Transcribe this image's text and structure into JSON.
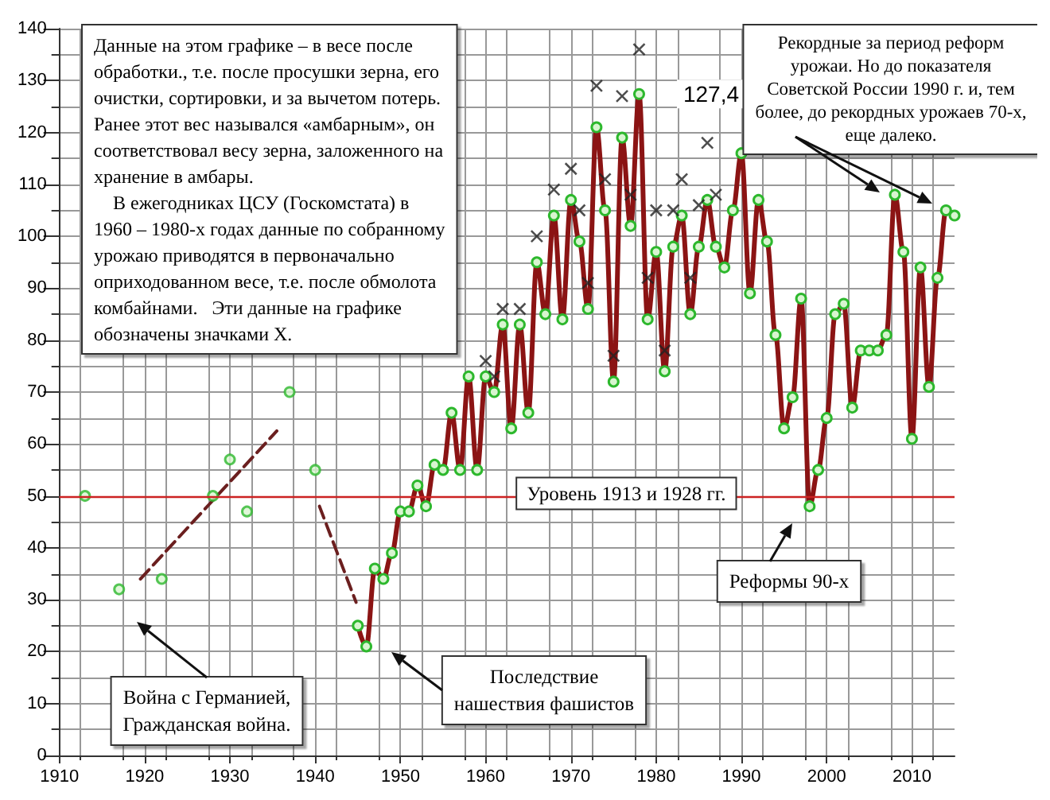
{
  "chart_data": {
    "type": "line",
    "xlim": [
      1910,
      2015
    ],
    "xticks": [
      1910,
      1920,
      1930,
      1940,
      1950,
      1960,
      1970,
      1980,
      1990,
      2000,
      2010
    ],
    "ylim": [
      0,
      140
    ],
    "yticks": [
      0,
      10,
      20,
      30,
      40,
      50,
      60,
      70,
      80,
      90,
      100,
      110,
      120,
      130,
      140
    ],
    "grid": true,
    "marker": "circle",
    "line_style": "solid",
    "series": [
      {
        "type": "scatter",
        "color": "#2db82d",
        "x": [
          1913,
          1917,
          1922,
          1928,
          1930,
          1932,
          1937,
          1940
        ],
        "values": [
          50,
          32,
          34,
          50,
          57,
          47,
          70,
          55
        ]
      },
      {
        "color": "#6b1f1f",
        "line_style": "dashed",
        "marker": "none",
        "x": [
          1919.5,
          1935.5
        ],
        "values": [
          34,
          62.5
        ]
      },
      {
        "color": "#6b1f1f",
        "line_style": "dashed",
        "marker": "none",
        "x": [
          1940.5,
          1944.8
        ],
        "values": [
          48,
          29.5
        ]
      },
      {
        "color": "#8b1414",
        "x": [
          1945,
          1946,
          1947,
          1948,
          1949,
          1950,
          1951,
          1952,
          1953,
          1954,
          1955,
          1956,
          1957,
          1958,
          1959,
          1960,
          1961,
          1962,
          1963,
          1964,
          1965,
          1966,
          1967,
          1968,
          1969,
          1970,
          1971,
          1972,
          1973,
          1974,
          1975,
          1976,
          1977,
          1978,
          1979,
          1980,
          1981,
          1982,
          1983,
          1984,
          1985,
          1986,
          1987,
          1988,
          1989,
          1990,
          1991,
          1992,
          1993,
          1994,
          1995,
          1996,
          1997,
          1998,
          1999,
          2000,
          2001,
          2002,
          2003,
          2004,
          2005,
          2006,
          2007,
          2008,
          2009,
          2010,
          2011,
          2012,
          2013,
          2014,
          2015
        ],
        "values": [
          25,
          21,
          36,
          34,
          39,
          47,
          47,
          52,
          48,
          56,
          55,
          66,
          55,
          73,
          55,
          73,
          70,
          83,
          63,
          83,
          66,
          95,
          85,
          104,
          84,
          107,
          99,
          86,
          121,
          105,
          72,
          119,
          102,
          127.4,
          84,
          97,
          74,
          98,
          104,
          85,
          98,
          107,
          98,
          94,
          105,
          116,
          89,
          107,
          99,
          81,
          63,
          69,
          88,
          48,
          55,
          65,
          85,
          87,
          67,
          78,
          78,
          78,
          81,
          108,
          97,
          61,
          94,
          71,
          92,
          105,
          104
        ],
        "value_labels": [
          null,
          null,
          null,
          null,
          null,
          null,
          null,
          null,
          null,
          null,
          null,
          null,
          null,
          null,
          null,
          null,
          null,
          null,
          null,
          null,
          null,
          null,
          null,
          null,
          null,
          null,
          null,
          null,
          null,
          null,
          null,
          null,
          null,
          "127,4",
          null,
          null,
          null,
          null,
          null,
          null,
          null,
          null,
          null,
          null,
          null,
          null,
          null,
          null,
          null,
          null,
          null,
          null,
          null,
          null,
          null,
          null,
          null,
          null,
          null,
          null,
          null,
          null,
          null,
          null,
          null,
          null,
          null,
          null,
          null,
          null,
          null
        ]
      },
      {
        "type": "scatter",
        "color": "#222222",
        "marker": "cross",
        "x": [
          1960,
          1961,
          1962,
          1964,
          1966,
          1968,
          1970,
          1971,
          1972,
          1973,
          1974,
          1975,
          1976,
          1977,
          1978,
          1979,
          1980,
          1981,
          1982,
          1983,
          1984,
          1985,
          1986,
          1987
        ],
        "values": [
          76,
          73,
          86,
          86,
          100,
          109,
          113,
          105,
          91,
          129,
          111,
          77,
          127,
          108,
          136,
          92,
          105,
          78,
          105,
          111,
          92,
          106,
          118,
          108
        ]
      }
    ],
    "ref_lines": [
      {
        "axis": "y",
        "value": 50,
        "label": "Уровень 1913 и 1928 гг.",
        "color": "#cc2222"
      }
    ],
    "annotations": [
      "Данные на этом графике – в весе после\nобработки., т.е. после просушки зерна, его\nочистки, сортировки, и за вычетом потерь.\nРанее этот вес назывался «амбарным», он\nсоответствовал весу зерна, заложенного на\nхранение в амбары.\n    В ежегодниках ЦСУ (Госкомстата) в\n1960 – 1980-х годах данные по собранному\nурожаю приводятся в первоначально\noприходованном весе, т.е. после обмолота\nкомбайнами.   Эти данные на графике\nобозначены значками X.",
      "Рекордные за период реформ\nурожаи. Но до показателя\nСоветской России 1990 г. и, тем\nболее, до рекордных урожаев 70-х,\nеще далеко.",
      "Война с Германией,\nГражданская война.",
      "Последствие\nнашествия фашистов",
      "Реформы 90-х"
    ]
  }
}
